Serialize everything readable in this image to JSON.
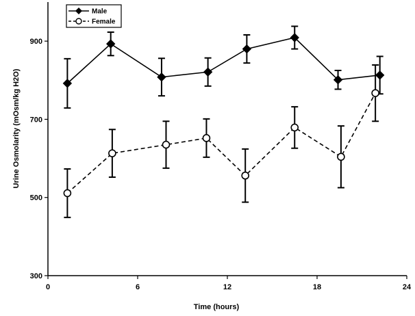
{
  "chart_data": {
    "type": "line",
    "title": "",
    "xlabel": "Time (hours)",
    "ylabel": "Urine Osmolarity (mOsm/kg H2O)",
    "xlim": [
      0,
      24
    ],
    "ylim": [
      300,
      1000
    ],
    "xticks": [
      0,
      6,
      12,
      18,
      24
    ],
    "yticks": [
      300,
      500,
      700,
      900
    ],
    "grid": false,
    "legend_position": "top-left",
    "series": [
      {
        "name": "Male",
        "marker": "diamond-filled",
        "line": "solid",
        "color": "#000000",
        "x": [
          1.3,
          4.2,
          7.6,
          10.7,
          13.3,
          16.5,
          19.4,
          22.2
        ],
        "y": [
          792,
          893,
          808,
          821,
          880,
          909,
          801,
          813
        ],
        "err": [
          63,
          30,
          48,
          36,
          36,
          29,
          24,
          48
        ]
      },
      {
        "name": "Female",
        "marker": "circle-open",
        "line": "dashed",
        "color": "#000000",
        "x": [
          1.3,
          4.3,
          7.9,
          10.6,
          13.2,
          16.5,
          19.6,
          21.9
        ],
        "y": [
          511,
          613,
          635,
          652,
          556,
          679,
          604,
          767
        ],
        "err": [
          62,
          61,
          60,
          49,
          68,
          53,
          79,
          72
        ]
      }
    ]
  }
}
